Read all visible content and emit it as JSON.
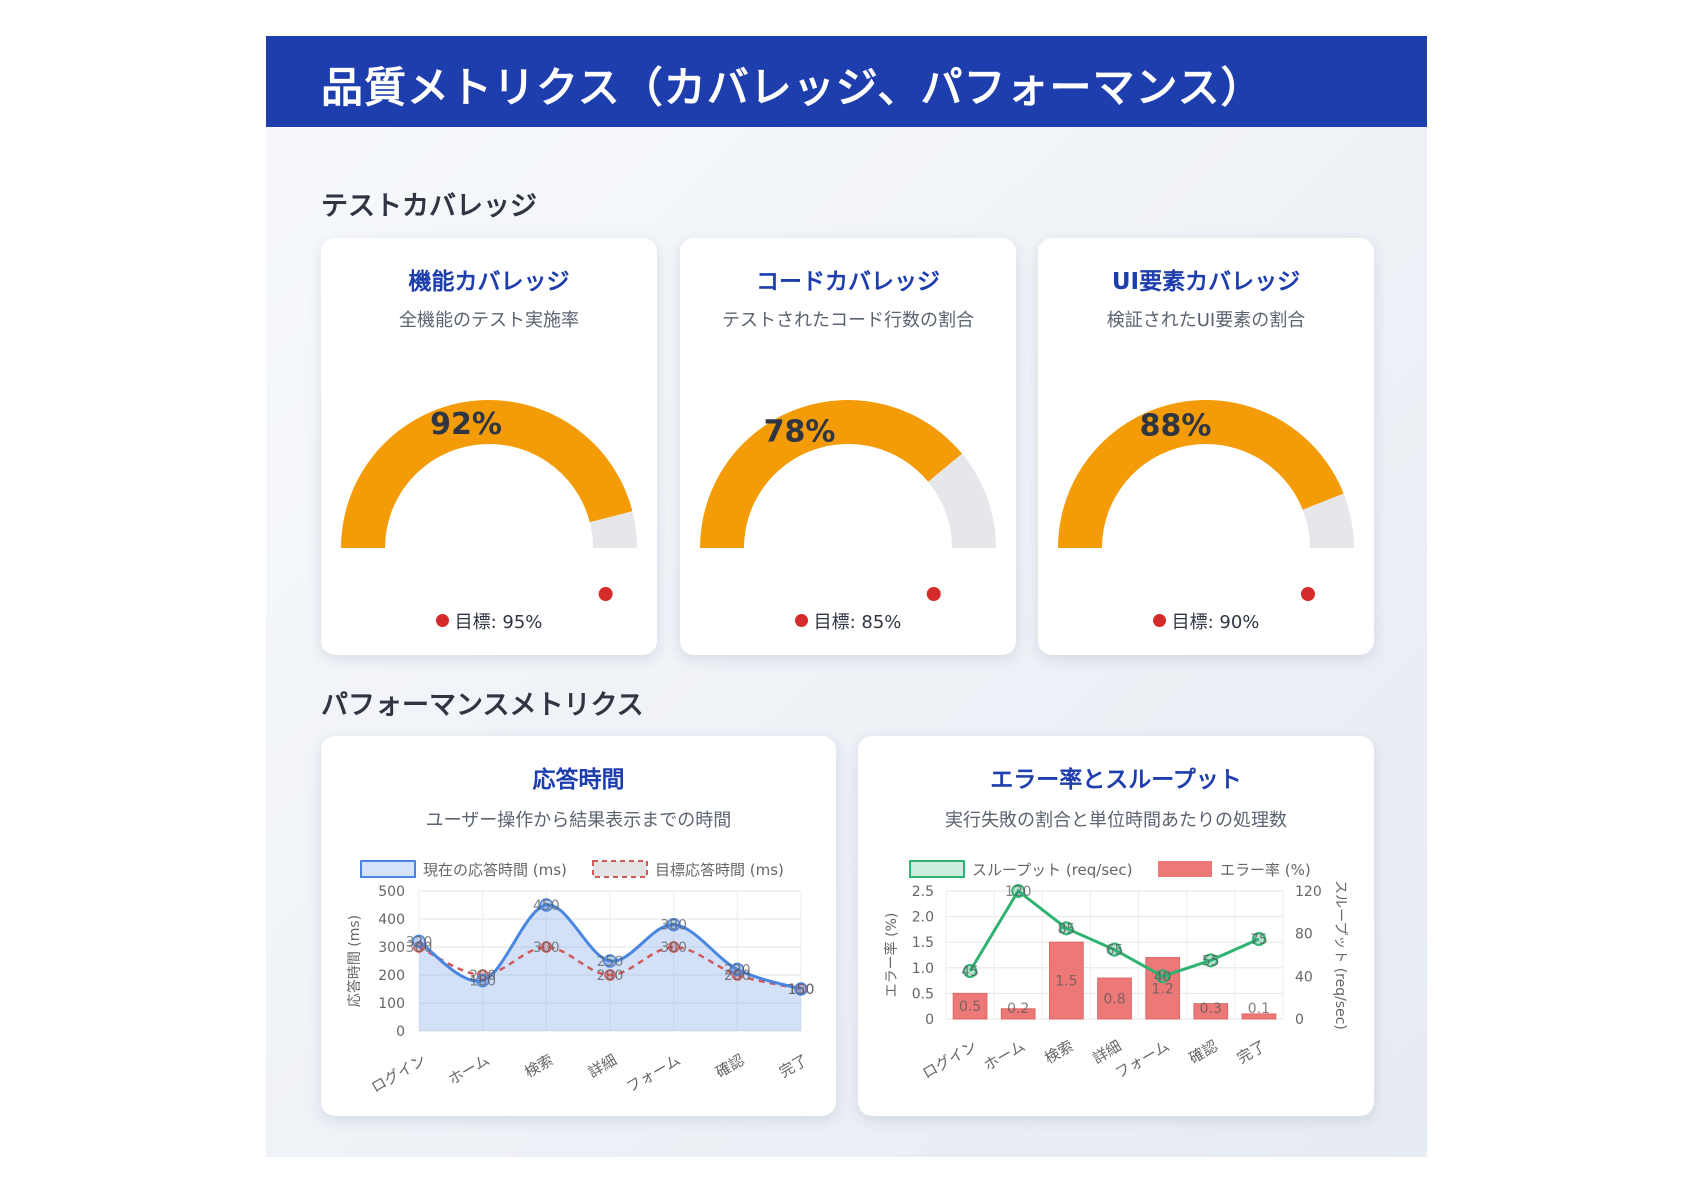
{
  "header": {
    "title": "品質メトリクス（カバレッジ、パフォーマンス）"
  },
  "sections": {
    "coverage_title": "テストカバレッジ",
    "performance_title": "パフォーマンスメトリクス"
  },
  "colors": {
    "header_bg": "#1e3eae",
    "gauge_fill": "#f39c07",
    "gauge_track": "#e5e7eb",
    "target": "#d52b2b",
    "line_current": "#4a86e0",
    "line_target": "#cf5a5a",
    "throughput": "#2fb373",
    "error_bar": "#ec7878"
  },
  "gauges": [
    {
      "title": "機能カバレッジ",
      "subtitle": "全機能のテスト実施率",
      "value": 92,
      "value_label": "92%",
      "target": 95,
      "target_label": "目標: 95%"
    },
    {
      "title": "コードカバレッジ",
      "subtitle": "テストされたコード行数の割合",
      "value": 78,
      "value_label": "78%",
      "target": 85,
      "target_label": "目標: 85%"
    },
    {
      "title": "UI要素カバレッジ",
      "subtitle": "検証されたUI要素の割合",
      "value": 88,
      "value_label": "88%",
      "target": 90,
      "target_label": "目標: 90%"
    }
  ],
  "response_card": {
    "title": "応答時間",
    "subtitle": "ユーザー操作から結果表示までの時間"
  },
  "error_card": {
    "title": "エラー率とスループット",
    "subtitle": "実行失敗の割合と単位時間あたりの処理数"
  },
  "chart_data": [
    {
      "type": "line",
      "categories": [
        "ログイン",
        "ホーム",
        "検索",
        "詳細",
        "フォーム",
        "確認",
        "完了"
      ],
      "series": [
        {
          "name": "現在の応答時間 (ms)",
          "values": [
            320,
            180,
            450,
            250,
            380,
            220,
            150
          ]
        },
        {
          "name": "目標応答時間 (ms)",
          "values": [
            300,
            200,
            300,
            200,
            300,
            200,
            150
          ]
        }
      ],
      "data_labels": {
        "current": [
          "320",
          "180",
          "450",
          "250",
          "380",
          "220",
          "150"
        ],
        "target": [
          "300",
          "200",
          "300",
          "200",
          "300",
          "200",
          "150"
        ]
      },
      "ylabel": "応答時間 (ms)",
      "ylim": [
        0,
        500
      ],
      "yticks": [
        "0",
        "100",
        "200",
        "300",
        "400",
        "500"
      ],
      "grid": true,
      "legend": "top"
    },
    {
      "type": "bar",
      "categories": [
        "ログイン",
        "ホーム",
        "検索",
        "詳細",
        "フォーム",
        "確認",
        "完了"
      ],
      "series": [
        {
          "name": "スループット (req/sec)",
          "type": "line",
          "axis": "right",
          "values": [
            45,
            120,
            85,
            65,
            40,
            55,
            75
          ]
        },
        {
          "name": "エラー率 (%)",
          "type": "bar",
          "axis": "left",
          "values": [
            0.5,
            0.2,
            1.5,
            0.8,
            1.2,
            0.3,
            0.1
          ]
        }
      ],
      "data_labels": {
        "throughput": [
          "45",
          "120",
          "85",
          "65",
          "40",
          "55",
          "75"
        ],
        "error": [
          "0.5",
          "0.2",
          "1.5",
          "0.8",
          "1.2",
          "0.3",
          "0.1"
        ]
      },
      "ylabel_left": "エラー率 (%)",
      "ylabel_right": "スループット (req/sec)",
      "ylim_left": [
        0,
        2.5
      ],
      "ylim_right": [
        0,
        120
      ],
      "yticks_left": [
        "0",
        "0.5",
        "1.0",
        "1.5",
        "2.0",
        "2.5"
      ],
      "yticks_right": [
        "0",
        "40",
        "80",
        "120"
      ],
      "grid": true,
      "legend": "top"
    }
  ]
}
